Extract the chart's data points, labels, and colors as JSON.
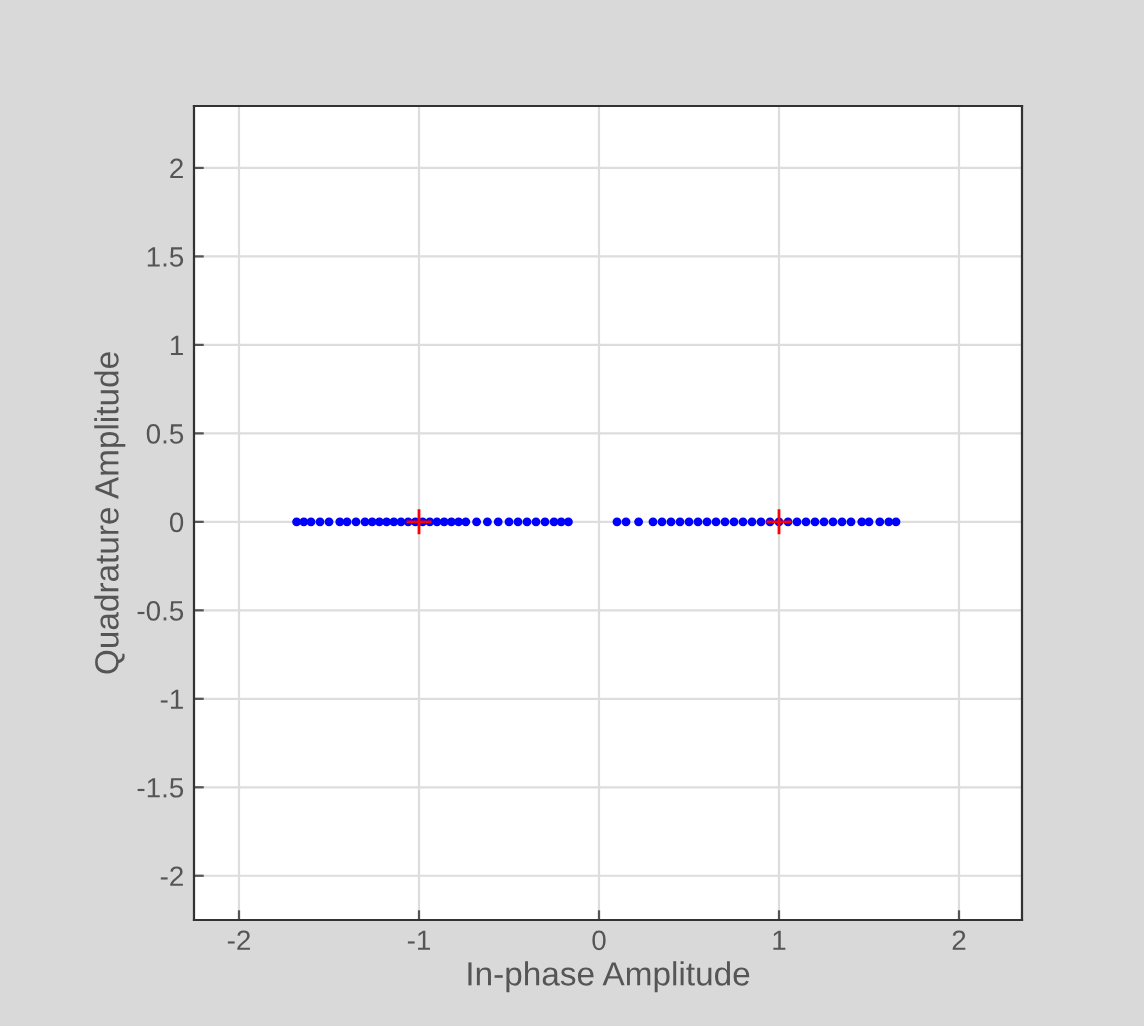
{
  "chart_data": {
    "type": "scatter",
    "xlabel": "In-phase Amplitude",
    "ylabel": "Quadrature Amplitude",
    "xlim": [
      -2.25,
      2.35
    ],
    "ylim": [
      -2.25,
      2.35
    ],
    "xticks": [
      -2,
      -1,
      0,
      1,
      2
    ],
    "yticks": [
      -2,
      -1.5,
      -1,
      -0.5,
      0,
      0.5,
      1,
      1.5,
      2
    ],
    "grid": true,
    "series": [
      {
        "color": "#0000ff",
        "marker": "circle",
        "x": [
          -1.68,
          -1.64,
          -1.6,
          -1.55,
          -1.5,
          -1.44,
          -1.4,
          -1.35,
          -1.3,
          -1.26,
          -1.22,
          -1.18,
          -1.14,
          -1.1,
          -1.06,
          -1.02,
          -0.98,
          -0.94,
          -0.9,
          -0.86,
          -0.82,
          -0.78,
          -0.74,
          -0.68,
          -0.62,
          -0.56,
          -0.5,
          -0.45,
          -0.4,
          -0.35,
          -0.3,
          -0.25,
          -0.21,
          -0.17,
          0.1,
          0.15,
          0.22,
          0.3,
          0.35,
          0.4,
          0.45,
          0.5,
          0.55,
          0.6,
          0.65,
          0.7,
          0.75,
          0.8,
          0.85,
          0.9,
          0.95,
          1.0,
          1.05,
          1.1,
          1.15,
          1.2,
          1.25,
          1.3,
          1.35,
          1.4,
          1.46,
          1.5,
          1.56,
          1.61,
          1.65
        ],
        "values": [
          0,
          0,
          0,
          0,
          0,
          0,
          0,
          0,
          0,
          0,
          0,
          0,
          0,
          0,
          0,
          0,
          0,
          0,
          0,
          0,
          0,
          0,
          0,
          0,
          0,
          0,
          0,
          0,
          0,
          0,
          0,
          0,
          0,
          0,
          0,
          0,
          0,
          0,
          0,
          0,
          0,
          0,
          0,
          0,
          0,
          0,
          0,
          0,
          0,
          0,
          0,
          0,
          0,
          0,
          0,
          0,
          0,
          0,
          0,
          0,
          0,
          0,
          0,
          0,
          0
        ]
      },
      {
        "color": "#ff0000",
        "marker": "cross",
        "x": [
          -1,
          1
        ],
        "values": [
          0,
          0
        ]
      }
    ]
  }
}
